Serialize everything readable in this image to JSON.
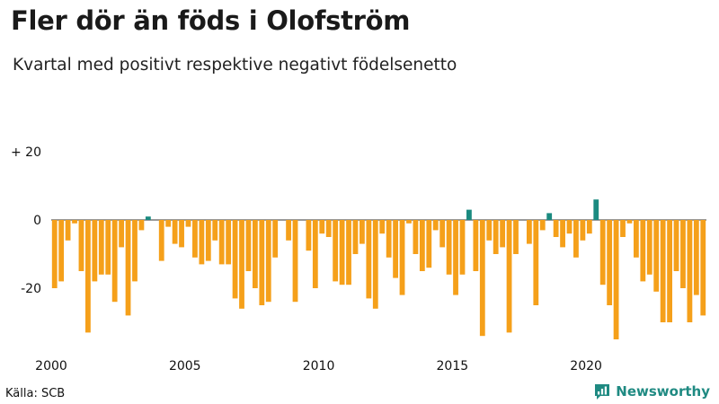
{
  "header": {
    "title": "Fler dör än föds i Olofström",
    "subtitle": "Kvartal med positivt respektive negativt födelsenetto"
  },
  "footer": {
    "source": "Källa: SCB",
    "brand": "Newsworthy"
  },
  "colors": {
    "negative": "#f5a01a",
    "positive": "#1a8a80",
    "brand": "#1f8a82"
  },
  "chart_data": {
    "type": "bar",
    "title": "Fler dör än föds i Olofström",
    "subtitle": "Kvartal med positivt respektive negativt födelsenetto",
    "xlabel": "",
    "ylabel": "",
    "ylim": [
      -40,
      20
    ],
    "grid": false,
    "yticks": [
      {
        "value": 20,
        "label": "+ 20"
      },
      {
        "value": 0,
        "label": "0"
      },
      {
        "value": -20,
        "label": "-20"
      }
    ],
    "xticks": [
      {
        "value": 2000,
        "label": "2000"
      },
      {
        "value": 2005,
        "label": "2005"
      },
      {
        "value": 2010,
        "label": "2010"
      },
      {
        "value": 2015,
        "label": "2015"
      },
      {
        "value": 2020,
        "label": "2020"
      }
    ],
    "start_year": 2000,
    "periods_per_year": 4,
    "values": [
      -20,
      -18,
      -6,
      -1,
      -15,
      -33,
      -18,
      -16,
      -16,
      -24,
      -8,
      -28,
      -18,
      -3,
      1,
      0,
      -12,
      -2,
      -7,
      -8,
      -2,
      -11,
      -13,
      -12,
      -6,
      -13,
      -13,
      -23,
      -26,
      -15,
      -20,
      -25,
      -24,
      -11,
      0,
      -6,
      -24,
      0,
      -9,
      -20,
      -4,
      -5,
      -18,
      -19,
      -19,
      -10,
      -7,
      -23,
      -26,
      -4,
      -11,
      -17,
      -22,
      -1,
      -10,
      -15,
      -14,
      -3,
      -8,
      -16,
      -22,
      -16,
      3,
      -15,
      -34,
      -6,
      -10,
      -8,
      -33,
      -10,
      0,
      -7,
      -25,
      -3,
      2,
      -5,
      -8,
      -4,
      -11,
      -6,
      -4,
      6,
      -19,
      -25,
      -35,
      -5,
      -1,
      -11,
      -18,
      -16,
      -21,
      -30,
      -30,
      -15,
      -20,
      -30,
      -22,
      -28
    ]
  }
}
